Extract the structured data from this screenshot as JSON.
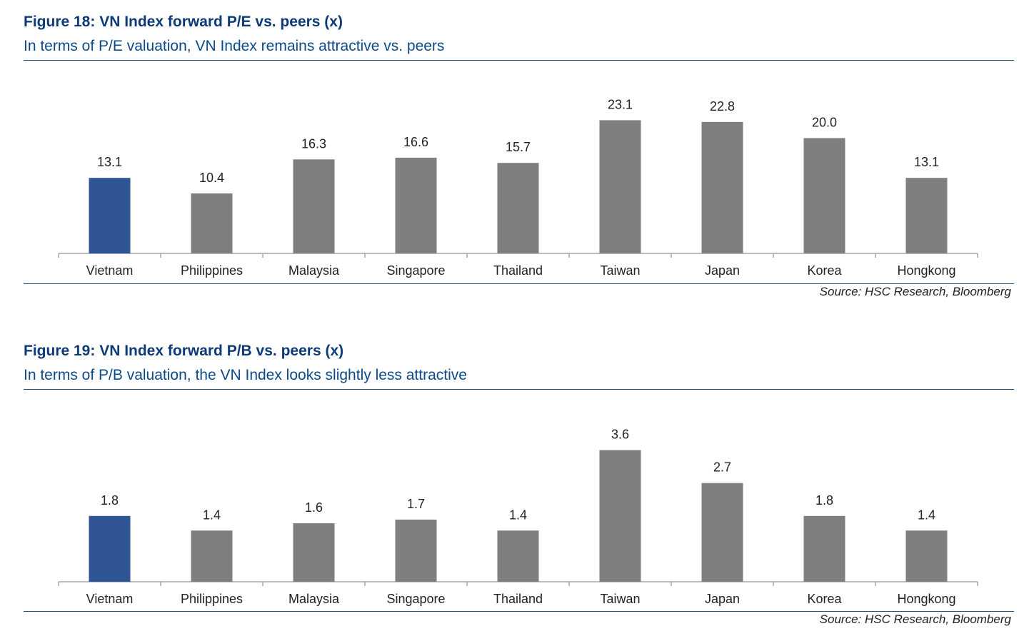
{
  "colors": {
    "highlight": "#2f5597",
    "bar": "#7f7f7f",
    "axis": "#a6a6a6",
    "title": "#0d3b7a"
  },
  "chart_data": [
    {
      "type": "bar",
      "title": "Figure 18: VN Index forward P/E vs. peers (x)",
      "subtitle": "In terms of P/E valuation, VN Index remains attractive vs. peers",
      "source": "Source: HSC Research, Bloomberg",
      "categories": [
        "Vietnam",
        "Philippines",
        "Malaysia",
        "Singapore",
        "Thailand",
        "Taiwan",
        "Japan",
        "Korea",
        "Hongkong"
      ],
      "values": [
        13.1,
        10.4,
        16.3,
        16.6,
        15.7,
        23.1,
        22.8,
        20.0,
        13.1
      ],
      "labels": [
        "13.1",
        "10.4",
        "16.3",
        "16.6",
        "15.7",
        "23.1",
        "22.8",
        "20.0",
        "13.1"
      ],
      "highlight": "Vietnam",
      "ylim": [
        0,
        26
      ]
    },
    {
      "type": "bar",
      "title": "Figure 19: VN Index forward P/B vs. peers (x)",
      "subtitle": "In terms of P/B valuation, the VN Index looks slightly less attractive",
      "source": "Source: HSC Research, Bloomberg",
      "categories": [
        "Vietnam",
        "Philippines",
        "Malaysia",
        "Singapore",
        "Thailand",
        "Taiwan",
        "Japan",
        "Korea",
        "Hongkong"
      ],
      "values": [
        1.8,
        1.4,
        1.6,
        1.7,
        1.4,
        3.6,
        2.7,
        1.8,
        1.4
      ],
      "labels": [
        "1.8",
        "1.4",
        "1.6",
        "1.7",
        "1.4",
        "3.6",
        "2.7",
        "1.8",
        "1.4"
      ],
      "highlight": "Vietnam",
      "ylim": [
        0,
        4.1
      ]
    }
  ]
}
